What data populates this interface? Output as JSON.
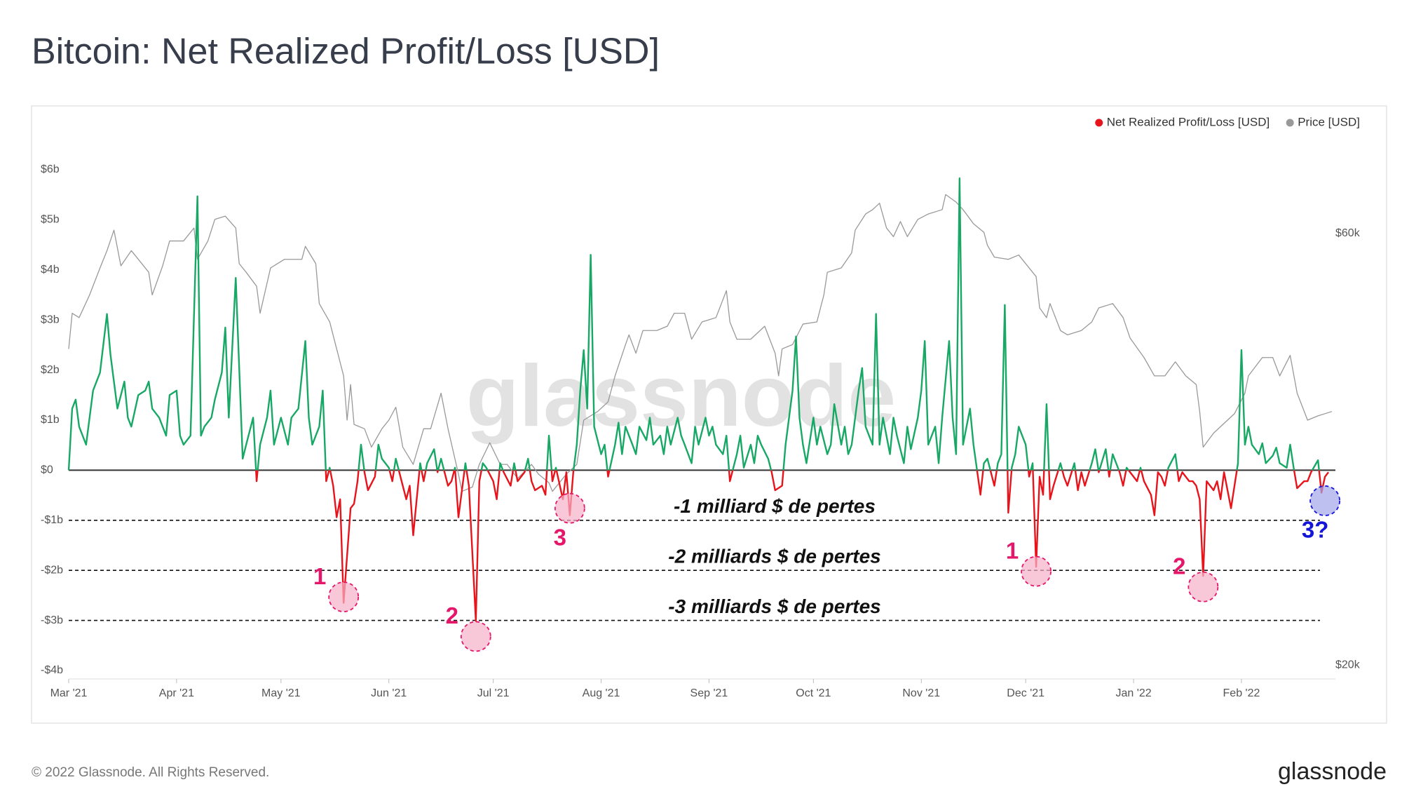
{
  "page": {
    "footer": "© 2022 Glassnode. All Rights Reserved.",
    "logo": "glassnode"
  },
  "chart_data": {
    "type": "line",
    "title": "Bitcoin: Net Realized Profit/Loss [USD]",
    "watermark": "glassnode",
    "legend": "top-right",
    "grid": false,
    "zero_line": true,
    "xlim": [
      0,
      364
    ],
    "xticks": [
      {
        "value": 0,
        "label": "Mar '21"
      },
      {
        "value": 31,
        "label": "Apr '21"
      },
      {
        "value": 61,
        "label": "May '21"
      },
      {
        "value": 92,
        "label": "Jun '21"
      },
      {
        "value": 122,
        "label": "Jul '21"
      },
      {
        "value": 153,
        "label": "Aug '21"
      },
      {
        "value": 184,
        "label": "Sep '21"
      },
      {
        "value": 214,
        "label": "Oct '21"
      },
      {
        "value": 245,
        "label": "Nov '21"
      },
      {
        "value": 275,
        "label": "Dec '21"
      },
      {
        "value": 306,
        "label": "Jan '22"
      },
      {
        "value": 337,
        "label": "Feb '22"
      }
    ],
    "ylim": [
      -4,
      6
    ],
    "yticks": [
      {
        "value": 6,
        "label": "$6b"
      },
      {
        "value": 5,
        "label": "$5b"
      },
      {
        "value": 4,
        "label": "$4b"
      },
      {
        "value": 3,
        "label": "$3b"
      },
      {
        "value": 2,
        "label": "$2b"
      },
      {
        "value": 1,
        "label": "$1b"
      },
      {
        "value": 0,
        "label": "$0"
      },
      {
        "value": -1,
        "label": "-$1b"
      },
      {
        "value": -2,
        "label": "-$2b"
      },
      {
        "value": -3,
        "label": "-$3b"
      },
      {
        "value": -4,
        "label": "-$4b"
      }
    ],
    "y2lim": [
      19.5,
      65.9
    ],
    "y2ticks": [
      {
        "value": 60,
        "label": "$60k"
      },
      {
        "value": 20,
        "label": "$20k"
      }
    ],
    "series": [
      {
        "name": "Net Realized Profit/Loss [USD]",
        "color": "#e8141c",
        "positive_color": "#17a865",
        "x": [
          0,
          1,
          2,
          3,
          5,
          6,
          7,
          9,
          11,
          12,
          14,
          16,
          17,
          18,
          20,
          22,
          23,
          24,
          26,
          28,
          29,
          31,
          32,
          33,
          35,
          37,
          38,
          39,
          41,
          42,
          44,
          45,
          46,
          48,
          50,
          51,
          53,
          54,
          55,
          57,
          58,
          59,
          61,
          63,
          64,
          66,
          68,
          69,
          70,
          72,
          73,
          74,
          75,
          76,
          77,
          78,
          79,
          81,
          82,
          83,
          84,
          85,
          86,
          88,
          89,
          90,
          92,
          93,
          94,
          96,
          97,
          98,
          99,
          101,
          102,
          103,
          105,
          106,
          107,
          109,
          110,
          111,
          112,
          114,
          115,
          117,
          118,
          119,
          120,
          122,
          123,
          124,
          125,
          127,
          128,
          129,
          131,
          132,
          133,
          134,
          136,
          137,
          138,
          139,
          140,
          142,
          143,
          144,
          145,
          146,
          147,
          148,
          149,
          150,
          151,
          153,
          154,
          155,
          157,
          158,
          159,
          160,
          162,
          163,
          164,
          166,
          167,
          168,
          170,
          171,
          172,
          173,
          175,
          176,
          177,
          179,
          180,
          181,
          183,
          184,
          185,
          186,
          188,
          189,
          190,
          192,
          193,
          194,
          196,
          197,
          198,
          199,
          201,
          202,
          203,
          205,
          206,
          207,
          208,
          209,
          210,
          211,
          212,
          214,
          215,
          216,
          218,
          219,
          220,
          222,
          223,
          224,
          225,
          227,
          228,
          229,
          231,
          232,
          233,
          234,
          236,
          237,
          238,
          240,
          241,
          242,
          244,
          245,
          246,
          247,
          249,
          250,
          251,
          253,
          254,
          255,
          256,
          257,
          258,
          259,
          260,
          262,
          263,
          264,
          266,
          267,
          268,
          269,
          270,
          271,
          272,
          273,
          275,
          276,
          277,
          278,
          279,
          280,
          281,
          282,
          283,
          285,
          286,
          287,
          289,
          290,
          291,
          292,
          294,
          295,
          296,
          298,
          299,
          300,
          302,
          303,
          304,
          305,
          307,
          308,
          309,
          311,
          312,
          313,
          314,
          315,
          316,
          318,
          319,
          320,
          322,
          323,
          324,
          325,
          326,
          327,
          329,
          330,
          331,
          332,
          334,
          335,
          336,
          337,
          338,
          339,
          340,
          342,
          343,
          344,
          346,
          347,
          348,
          350,
          351,
          352,
          353,
          355,
          356,
          357,
          359,
          360,
          361,
          362
        ],
        "values": [
          0,
          1.23,
          1.41,
          0.87,
          0.51,
          1.05,
          1.59,
          1.95,
          3.12,
          2.31,
          1.23,
          1.77,
          1.05,
          0.87,
          1.5,
          1.59,
          1.77,
          1.23,
          1.05,
          0.69,
          1.5,
          1.59,
          0.69,
          0.51,
          0.69,
          5.47,
          0.69,
          0.87,
          1.05,
          1.41,
          1.95,
          2.85,
          1.05,
          3.84,
          0.23,
          0.51,
          1.05,
          -0.22,
          0.51,
          1.05,
          1.59,
          0.51,
          1.05,
          0.51,
          1.05,
          1.23,
          2.58,
          1.05,
          0.51,
          0.87,
          1.59,
          -0.22,
          0.05,
          -0.31,
          -0.94,
          -0.58,
          -2.65,
          -0.76,
          -0.67,
          -0.22,
          0.51,
          -0.04,
          -0.4,
          -0.13,
          0.51,
          0.23,
          0.05,
          -0.22,
          0.23,
          -0.31,
          -0.58,
          -0.31,
          -1.3,
          0.14,
          -0.22,
          0.14,
          0.42,
          -0.04,
          0.23,
          -0.31,
          -0.22,
          0.05,
          -0.94,
          0.14,
          -0.31,
          -3.01,
          -0.22,
          0.14,
          0.05,
          -0.22,
          -0.58,
          0.14,
          -0.04,
          -0.31,
          0.14,
          -0.22,
          -0.04,
          0.23,
          -0.22,
          -0.4,
          -0.31,
          -0.49,
          0.69,
          -0.22,
          0.05,
          -0.58,
          -0.04,
          -0.9,
          -0.04,
          0.51,
          1.59,
          2.4,
          1.23,
          4.3,
          0.87,
          0.32,
          0.51,
          -0.13,
          0.51,
          0.95,
          0.32,
          0.87,
          0.51,
          0.32,
          0.87,
          0.6,
          1.05,
          0.51,
          0.69,
          0.32,
          0.87,
          0.51,
          1.05,
          0.69,
          0.51,
          0.14,
          0.87,
          0.51,
          1.05,
          0.69,
          0.87,
          0.51,
          0.32,
          0.69,
          -0.22,
          0.32,
          0.69,
          0.05,
          0.51,
          0.14,
          0.69,
          0.51,
          0.23,
          -0.04,
          -0.4,
          -0.31,
          0.51,
          1.05,
          1.59,
          2.67,
          1.05,
          0.51,
          0.14,
          1.05,
          0.51,
          0.87,
          0.32,
          0.51,
          1.32,
          0.51,
          0.87,
          0.32,
          0.51,
          1.59,
          2.04,
          0.87,
          0.51,
          3.12,
          0.51,
          1.05,
          0.32,
          1.05,
          0.69,
          0.14,
          0.87,
          0.42,
          1.05,
          1.59,
          2.58,
          0.51,
          0.87,
          0.14,
          1.05,
          2.58,
          1.05,
          0.32,
          5.83,
          0.51,
          0.87,
          1.23,
          0.51,
          -0.49,
          0.14,
          0.23,
          -0.31,
          0.14,
          0.32,
          3.3,
          -0.85,
          0.05,
          0.32,
          0.87,
          0.51,
          -0.13,
          0.14,
          -1.93,
          -0.13,
          -0.49,
          1.32,
          -0.58,
          -0.31,
          0.14,
          -0.13,
          -0.31,
          0.14,
          -0.4,
          -0.04,
          -0.31,
          0.14,
          0.42,
          -0.04,
          0.42,
          -0.13,
          0.32,
          -0.04,
          -0.31,
          0.05,
          -0.04,
          -0.22,
          0.05,
          -0.22,
          -0.49,
          -0.9,
          -0.04,
          -0.13,
          -0.31,
          0.05,
          0.32,
          -0.22,
          -0.04,
          -0.22,
          -0.22,
          -0.31,
          -0.58,
          -2.11,
          -0.22,
          -0.4,
          -0.22,
          -0.58,
          -0.04,
          -0.76,
          -0.31,
          0.14,
          2.4,
          0.51,
          0.87,
          0.51,
          0.32,
          0.54,
          0.14,
          0.29,
          0.45,
          0.14,
          0.05,
          0.51,
          0.05,
          -0.36,
          -0.22,
          -0.22,
          -0.04,
          0.2,
          -0.45,
          -0.13,
          -0.04
        ]
      },
      {
        "name": "Price [USD]",
        "color": "#999999",
        "axis": "y2",
        "x": [
          0,
          1,
          3,
          6,
          9,
          11,
          13,
          15,
          18,
          20,
          23,
          24,
          27,
          29,
          33,
          36,
          37,
          40,
          42,
          45,
          48,
          49,
          51,
          54,
          55,
          58,
          62,
          64,
          67,
          68,
          71,
          72,
          75,
          77,
          79,
          80,
          81,
          82,
          85,
          87,
          90,
          92,
          94,
          96,
          99,
          102,
          104,
          107,
          109,
          112,
          113,
          116,
          118,
          121,
          124,
          126,
          129,
          133,
          135,
          138,
          139,
          143,
          146,
          148,
          152,
          155,
          157,
          160,
          161,
          163,
          165,
          169,
          172,
          174,
          177,
          179,
          182,
          186,
          189,
          190,
          192,
          196,
          200,
          203,
          204,
          205,
          208,
          211,
          215,
          217,
          218,
          222,
          225,
          226,
          229,
          231,
          233,
          235,
          237,
          239,
          241,
          244,
          247,
          251,
          252,
          255,
          257,
          260,
          263,
          264,
          266,
          270,
          273,
          276,
          278,
          279,
          281,
          282,
          285,
          287,
          291,
          294,
          296,
          300,
          303,
          305,
          309,
          312,
          315,
          318,
          321,
          324,
          325,
          326,
          329,
          333,
          335,
          338,
          339,
          343,
          346,
          348,
          351,
          353,
          356,
          359,
          363
        ],
        "values": [
          49.3,
          52.6,
          52.2,
          54.3,
          56.8,
          58.4,
          60.3,
          57.0,
          58.4,
          57.6,
          56.4,
          54.3,
          57.0,
          59.3,
          59.3,
          60.5,
          57.6,
          59.3,
          61.3,
          61.6,
          60.5,
          57.2,
          56.4,
          55.1,
          52.6,
          56.8,
          57.6,
          57.6,
          57.6,
          58.8,
          57.2,
          53.5,
          51.8,
          49.3,
          46.8,
          42.7,
          46.0,
          42.3,
          41.9,
          40.2,
          41.9,
          42.7,
          43.9,
          40.2,
          38.6,
          41.9,
          41.9,
          45.2,
          41.9,
          37.7,
          36.1,
          36.5,
          38.6,
          40.6,
          38.6,
          38.6,
          37.3,
          38.6,
          37.7,
          36.9,
          36.1,
          37.7,
          38.6,
          42.7,
          43.5,
          44.4,
          46.8,
          49.7,
          50.6,
          48.9,
          51.0,
          51.0,
          51.4,
          52.6,
          52.6,
          50.2,
          51.8,
          52.2,
          54.7,
          51.8,
          50.2,
          50.2,
          51.4,
          48.9,
          46.8,
          49.3,
          49.7,
          51.6,
          51.8,
          54.3,
          56.4,
          56.8,
          58.2,
          60.3,
          61.8,
          62.2,
          62.8,
          60.5,
          59.7,
          61.1,
          59.7,
          61.3,
          61.8,
          62.2,
          63.6,
          62.9,
          62.2,
          60.9,
          60.1,
          58.9,
          57.8,
          57.6,
          58.0,
          56.8,
          56.0,
          53.1,
          52.2,
          53.5,
          51.0,
          50.6,
          51.0,
          51.8,
          53.1,
          53.5,
          52.2,
          50.3,
          48.5,
          46.8,
          46.8,
          48.1,
          46.8,
          46.0,
          43.5,
          40.2,
          41.5,
          42.7,
          43.3,
          45.2,
          46.8,
          48.5,
          48.5,
          46.8,
          48.7,
          45.2,
          42.7,
          43.1,
          43.5
        ]
      }
    ],
    "reference_lines": [
      {
        "value": -1,
        "label": "-1 milliard $ de pertes"
      },
      {
        "value": -2,
        "label": "-2 milliards $ de pertes"
      },
      {
        "value": -3,
        "label": "-3 milliards $ de pertes"
      }
    ],
    "markers": [
      {
        "label": "1",
        "x": 79,
        "y": -2.53,
        "color": "#e5176b",
        "fill": "#f7b0c8",
        "position": "upper-left"
      },
      {
        "label": "2",
        "x": 117,
        "y": -3.32,
        "color": "#e5176b",
        "fill": "#f7b0c8",
        "position": "upper-left"
      },
      {
        "label": "3",
        "x": 144,
        "y": -0.76,
        "color": "#e5176b",
        "fill": "#f7b0c8",
        "position": "below"
      },
      {
        "label": "1",
        "x": 278,
        "y": -2.02,
        "color": "#e5176b",
        "fill": "#f7b0c8",
        "position": "upper-left"
      },
      {
        "label": "2",
        "x": 326,
        "y": -2.33,
        "color": "#e5176b",
        "fill": "#f7b0c8",
        "position": "upper-left"
      },
      {
        "label": "3?",
        "x": 361,
        "y": -0.61,
        "color": "#1515d9",
        "fill": "#a3a5ea",
        "position": "below"
      }
    ]
  }
}
